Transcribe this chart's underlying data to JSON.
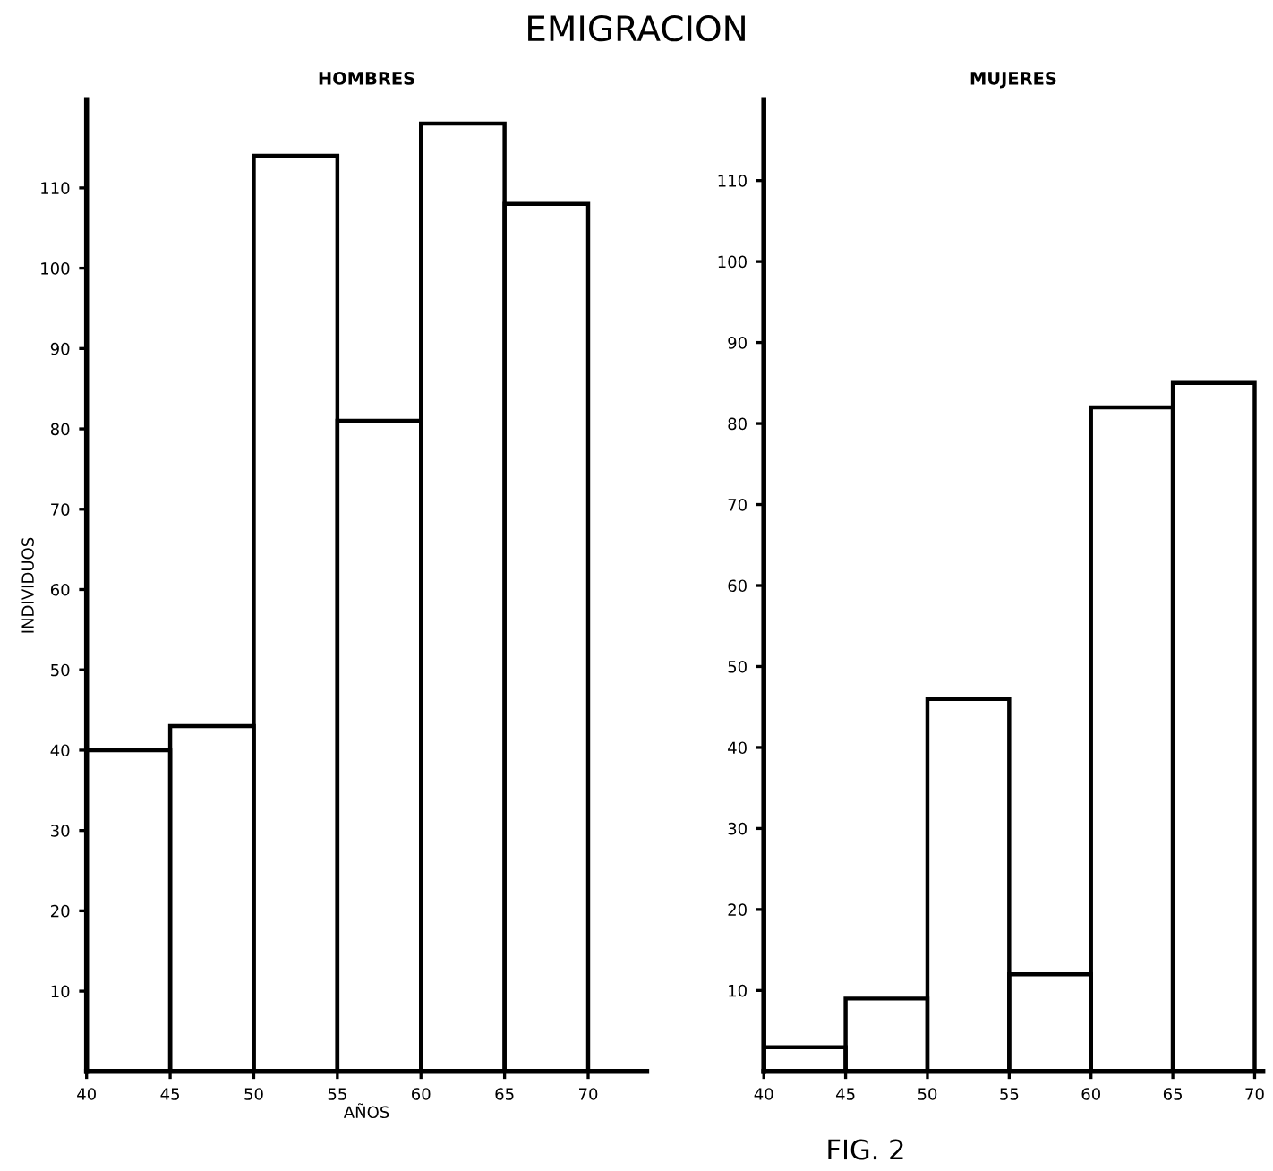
{
  "chart_data": [
    {
      "type": "histogram",
      "title": "EMIGRACION",
      "subtitle": "HOMBRES",
      "xlabel": "AÑOS",
      "ylabel": "INDIVIDUOS",
      "color": "#000000",
      "bins": [
        40,
        45,
        50,
        55,
        60,
        65,
        70
      ],
      "values": [
        40,
        43,
        114,
        81,
        118,
        108
      ],
      "xlim": [
        40,
        73.5
      ],
      "xticks": [
        40,
        45,
        50,
        55,
        60,
        65,
        70
      ],
      "ylim": [
        0,
        121
      ],
      "yticks": [
        10,
        20,
        30,
        40,
        50,
        60,
        70,
        80,
        90,
        100,
        110
      ]
    },
    {
      "type": "histogram",
      "subtitle": "MUJERES",
      "color": "#000000",
      "bins": [
        40,
        45,
        50,
        55,
        60,
        65,
        70
      ],
      "values": [
        3,
        9,
        46,
        12,
        82,
        85
      ],
      "xlim": [
        40,
        70.5
      ],
      "xticks": [
        40,
        45,
        50,
        55,
        60,
        65,
        70
      ],
      "ylim": [
        0,
        120
      ],
      "yticks": [
        10,
        20,
        30,
        40,
        50,
        60,
        70,
        80,
        90,
        100,
        110
      ],
      "annotations": [
        "FIG. 2"
      ]
    }
  ]
}
